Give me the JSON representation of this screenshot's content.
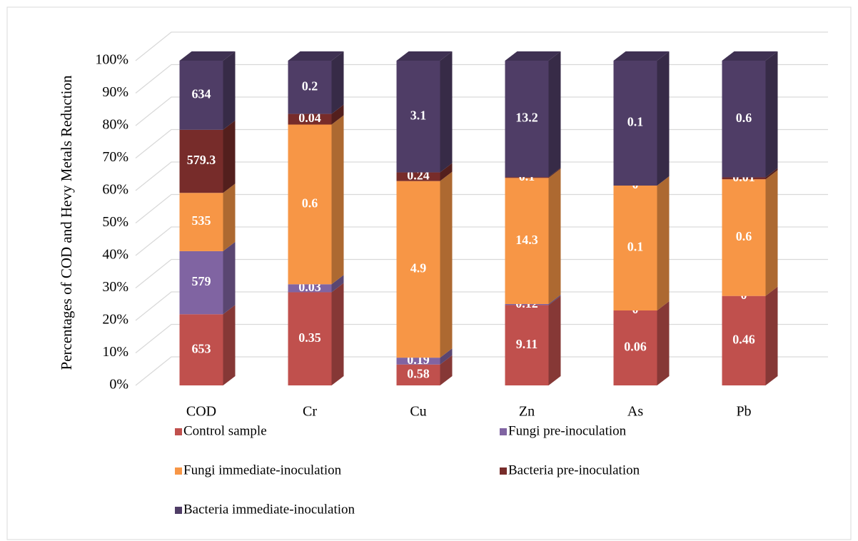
{
  "chart_data": {
    "type": "bar",
    "stacking": "percent",
    "y_label": "Percentages of COD and Hevy Metals Reduction",
    "categories": [
      "COD",
      "Cr",
      "Cu",
      "Zn",
      "As",
      "Pb"
    ],
    "series": [
      {
        "name": "Control sample",
        "color": "#c0504d",
        "values": [
          653,
          0.35,
          0.58,
          9.11,
          0.06,
          0.46
        ]
      },
      {
        "name": "Fungi pre-inoculation",
        "color": "#8064a2",
        "values": [
          579,
          0.03,
          0.19,
          0.12,
          0,
          0
        ]
      },
      {
        "name": "Fungi immediate-inoculation",
        "color": "#f79646",
        "values": [
          535,
          0.6,
          4.9,
          14.3,
          0.1,
          0.6
        ]
      },
      {
        "name": "Bacteria pre-inoculation",
        "color": "#772c2a",
        "values": [
          579.3,
          0.04,
          0.24,
          0.1,
          0,
          0.01
        ]
      },
      {
        "name": "Bacteria immediate-inoculation",
        "color": "#4f3d66",
        "values": [
          634,
          0.2,
          3.1,
          13.2,
          0.1,
          0.6
        ]
      }
    ],
    "ylim": [
      0,
      100
    ],
    "yticks": [
      {
        "value": 0,
        "label": "0%"
      },
      {
        "value": 10,
        "label": "10%"
      },
      {
        "value": 20,
        "label": "20%"
      },
      {
        "value": 30,
        "label": "30%"
      },
      {
        "value": 40,
        "label": "40%"
      },
      {
        "value": 50,
        "label": "50%"
      },
      {
        "value": 60,
        "label": "60%"
      },
      {
        "value": 70,
        "label": "70%"
      },
      {
        "value": 80,
        "label": "80%"
      },
      {
        "value": 90,
        "label": "90%"
      },
      {
        "value": 100,
        "label": "100%"
      }
    ],
    "grid": true,
    "legend": "bottom"
  }
}
